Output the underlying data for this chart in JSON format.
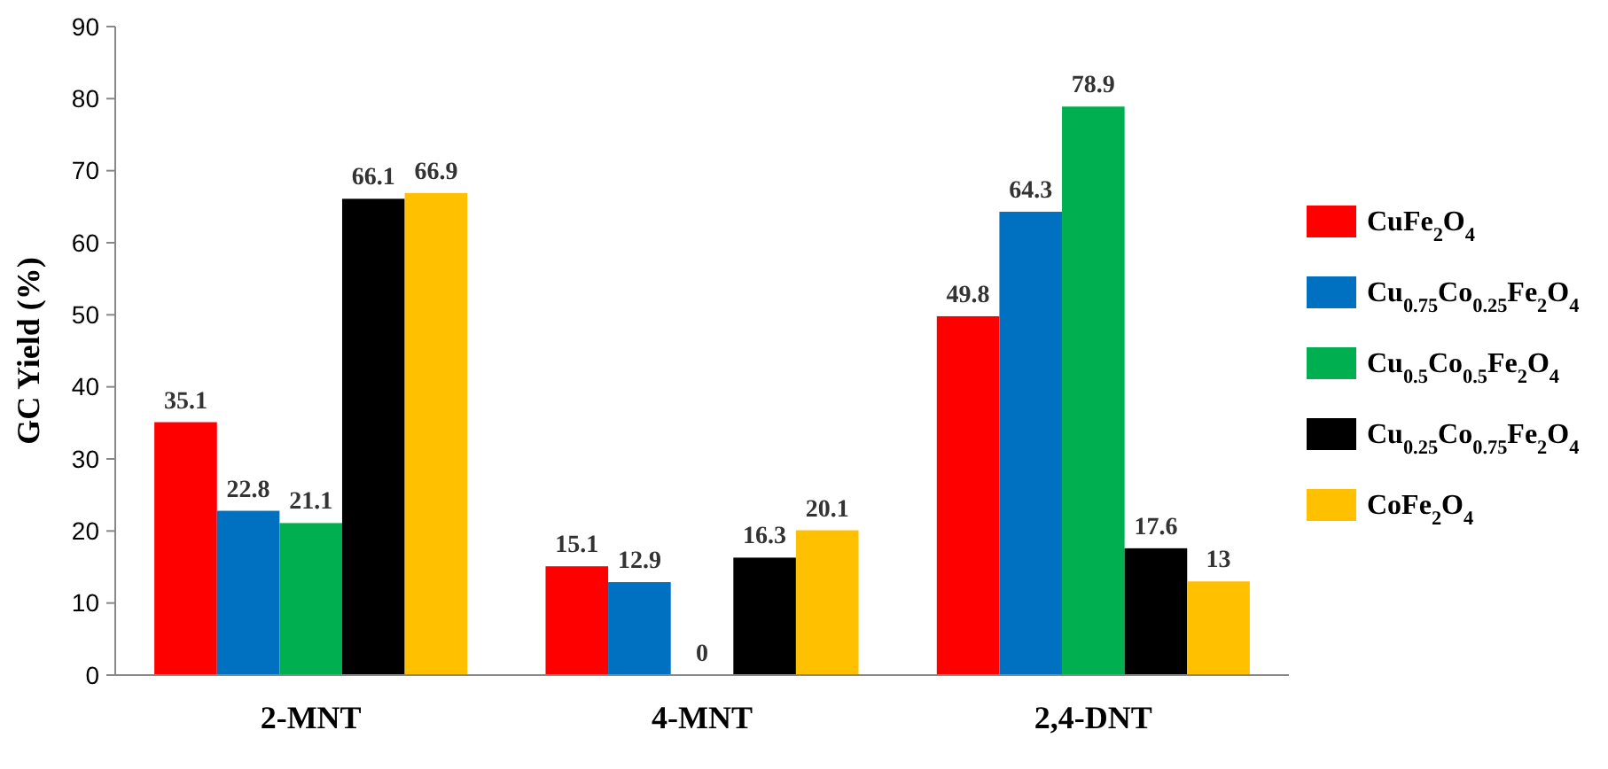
{
  "chart_data": {
    "type": "bar",
    "ylabel": "GC  Yield (%)",
    "categories": [
      "2-MNT",
      "4-MNT",
      "2,4-DNT"
    ],
    "series": [
      {
        "name": "CuFe$_{2}$O$_{4}$",
        "color": "#ff0000",
        "values": [
          35.1,
          15.1,
          49.8
        ]
      },
      {
        "name": "Cu$_{0.75}$Co$_{0.25}$Fe$_{2}$O$_{4}$",
        "color": "#0070c0",
        "values": [
          22.8,
          12.9,
          64.3
        ]
      },
      {
        "name": "Cu$_{0.5}$Co$_{0.5}$Fe$_{2}$O$_{4}$",
        "color": "#00b050",
        "values": [
          21.1,
          0,
          78.9
        ]
      },
      {
        "name": "Cu$_{0.25}$Co$_{0.75}$Fe$_{2}$O$_{4}$",
        "color": "#000000",
        "values": [
          66.1,
          16.3,
          17.6
        ]
      },
      {
        "name": "CoFe$_{2}$O$_{4}$",
        "color": "#ffc000",
        "values": [
          66.9,
          20.1,
          13
        ]
      }
    ],
    "ylim": [
      0,
      90
    ],
    "yticks": [
      0,
      10,
      20,
      30,
      40,
      50,
      60,
      70,
      80,
      90
    ],
    "data_labels": true,
    "legend": "right",
    "grid": false
  }
}
